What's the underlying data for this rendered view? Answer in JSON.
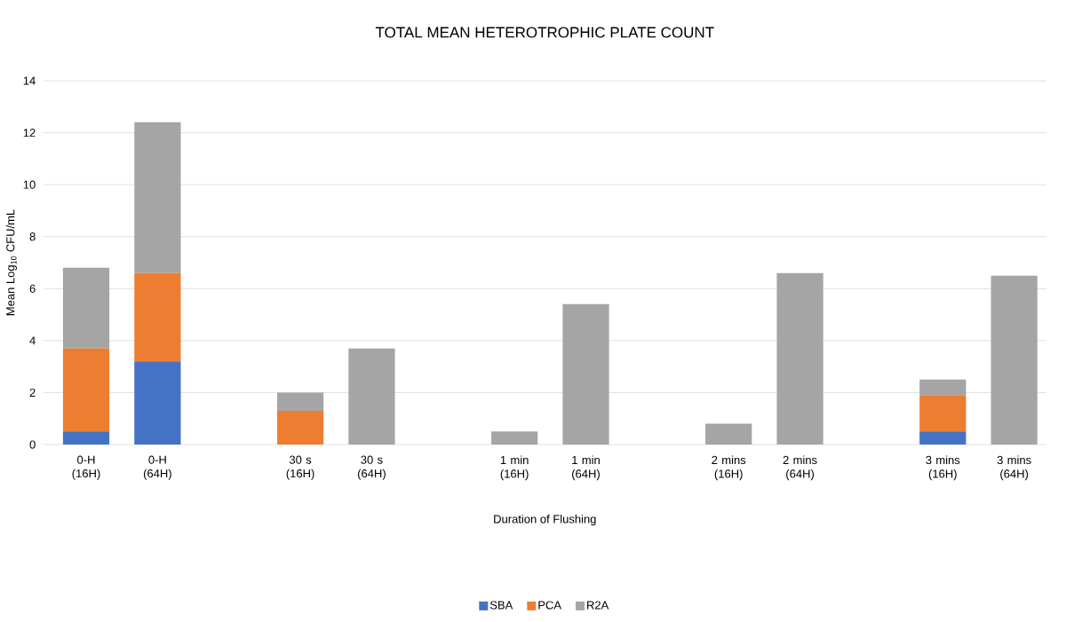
{
  "chart_data": {
    "type": "bar",
    "stacked": true,
    "title": "TOTAL MEAN HETEROTROPHIC PLATE COUNT",
    "xlabel": "Duration of Flushing",
    "ylabel": "Mean Log$_{10}$ CFU/mL",
    "categories": [
      "0-H (16H)",
      "0-H (64H)",
      null,
      "30 s (16H)",
      "30 s (64H)",
      null,
      "1 min (16H)",
      "1 min (64H)",
      null,
      "2 mins (16H)",
      "2 mins (64H)",
      null,
      "3 mins (16H)",
      "3 mins (64H)"
    ],
    "series": [
      {
        "name": "SBA",
        "color": "#4472c4",
        "values": [
          0.5,
          3.2,
          null,
          0,
          0,
          null,
          0,
          0,
          null,
          0,
          0,
          null,
          0.5,
          0
        ]
      },
      {
        "name": "PCA",
        "color": "#ed7d31",
        "values": [
          3.2,
          3.4,
          null,
          1.3,
          0,
          null,
          0,
          0,
          null,
          0,
          0,
          null,
          1.4,
          0
        ]
      },
      {
        "name": "R2A",
        "color": "#a5a5a5",
        "values": [
          3.1,
          5.8,
          null,
          0.7,
          3.7,
          null,
          0.5,
          5.4,
          null,
          0.8,
          6.6,
          null,
          0.6,
          6.5
        ]
      }
    ],
    "ylim": [
      0,
      14
    ],
    "yticks": [
      0,
      2,
      4,
      6,
      8,
      10,
      12,
      14
    ],
    "grid": "y",
    "legend": "bottom"
  }
}
